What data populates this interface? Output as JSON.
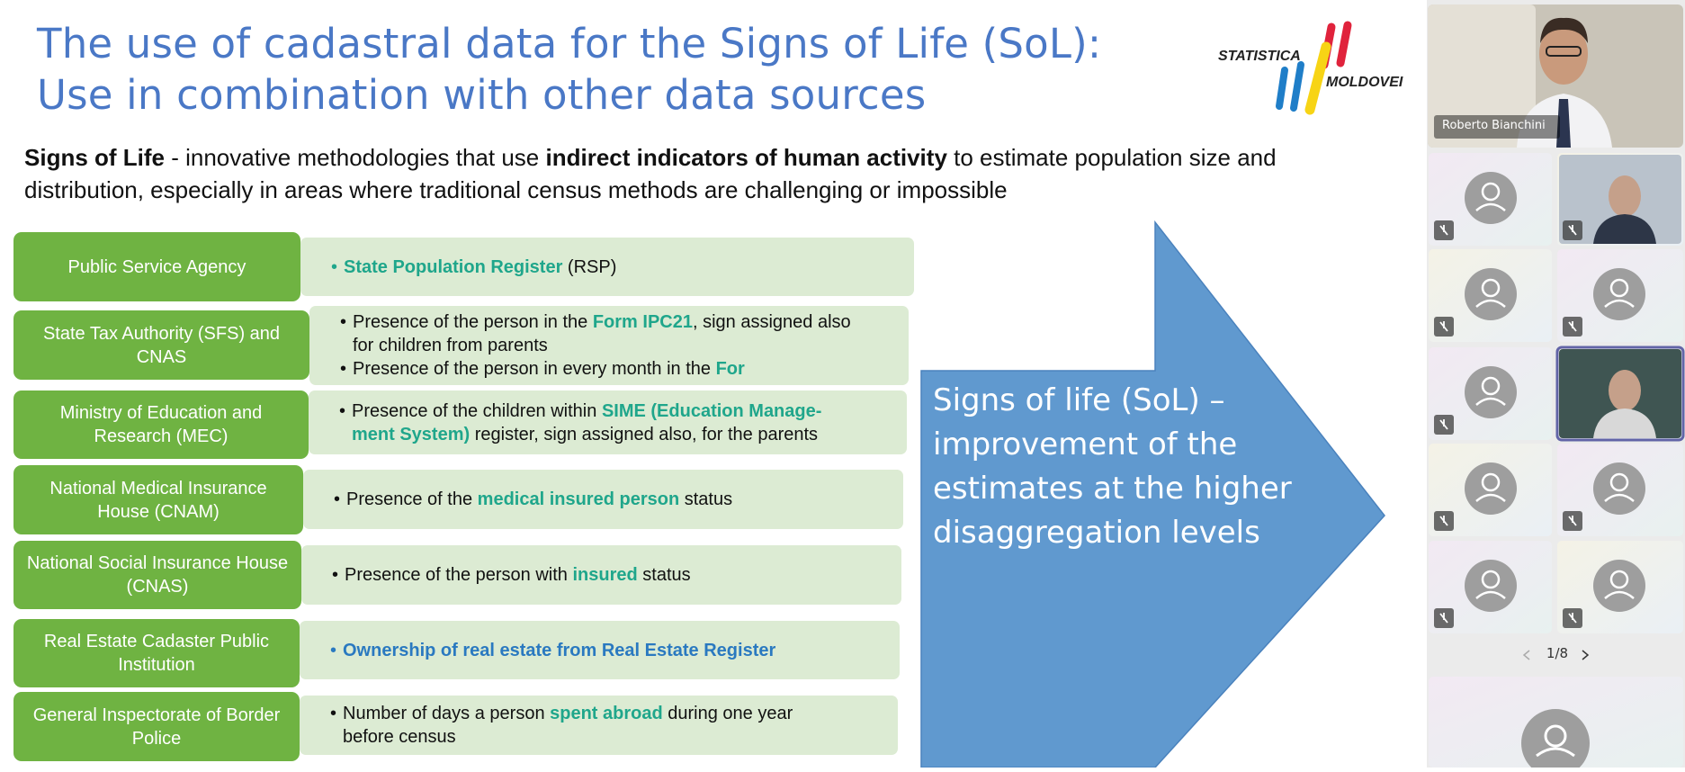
{
  "slide": {
    "title": [
      "The use of cadastral data for the Signs of Life (SoL):",
      "Use in combination with other data sources"
    ],
    "logo": {
      "top": "STATISTICA",
      "bottom": "MOLDOVEI"
    },
    "intro": [
      {
        "text": "Signs of Life",
        "bold": true
      },
      {
        "text": " - innovative methodologies that use "
      },
      {
        "text": "indirect indicators of human activity",
        "bold": true
      },
      {
        "text": " to estimate population size and distribution, especially in areas where traditional census methods are challenging or impossible"
      }
    ],
    "rows": [
      {
        "agency": "Public Service Agency",
        "bullets": [
          [
            {
              "text": "State Population Register",
              "bold": true,
              "color": "#1fa68b"
            },
            {
              "text": " (RSP)"
            }
          ]
        ]
      },
      {
        "agency": "State Tax Authority (SFS) and CNAS",
        "bullets": [
          [
            {
              "text": "Presence of the person in the  "
            },
            {
              "text": "Form IPC21",
              "bold": true,
              "color": "#1fa68b"
            },
            {
              "text": ", sign assigned also for children from parents"
            }
          ],
          [
            {
              "text": "Presence of the person in every month in the "
            },
            {
              "text": "For",
              "bold": true,
              "color": "#1fa68b"
            }
          ]
        ]
      },
      {
        "agency": "Ministry of Education and Research (MEC)",
        "bullets": [
          [
            {
              "text": "Presence of the children within "
            },
            {
              "text": "SIME (Education Manage-ment System)",
              "bold": true,
              "color": "#1fa68b"
            },
            {
              "text": " register, sign assigned also, for the parents"
            }
          ]
        ]
      },
      {
        "agency": "National Medical Insurance House (CNAM)",
        "bullets": [
          [
            {
              "text": "Presence of the "
            },
            {
              "text": "medical insured person",
              "bold": true,
              "color": "#1fa68b"
            },
            {
              "text": " status"
            }
          ]
        ]
      },
      {
        "agency": "National Social Insurance House (CNAS)",
        "bullets": [
          [
            {
              "text": "Presence of the person with "
            },
            {
              "text": "insured",
              "bold": true,
              "color": "#1fa68b"
            },
            {
              "text": " status"
            }
          ]
        ]
      },
      {
        "agency": "Real Estate Cadaster Public Institution",
        "bullets": [
          [
            {
              "text": "Ownership of real estate from Real Estate Register",
              "bold": true,
              "color": "#2a79c0"
            }
          ]
        ]
      },
      {
        "agency": "General Inspectorate of Border Police",
        "bullets": [
          [
            {
              "text": "Number of days a person "
            },
            {
              "text": "spent abroad",
              "bold": true,
              "color": "#1fa68b"
            },
            {
              "text": " during one year before census"
            }
          ]
        ]
      }
    ],
    "arrow_text": "Signs of life (SoL) – improvement of the estimates at the higher disaggregation levels"
  },
  "meeting": {
    "presenter": "Roberto Bianchini",
    "page": "1/8"
  }
}
